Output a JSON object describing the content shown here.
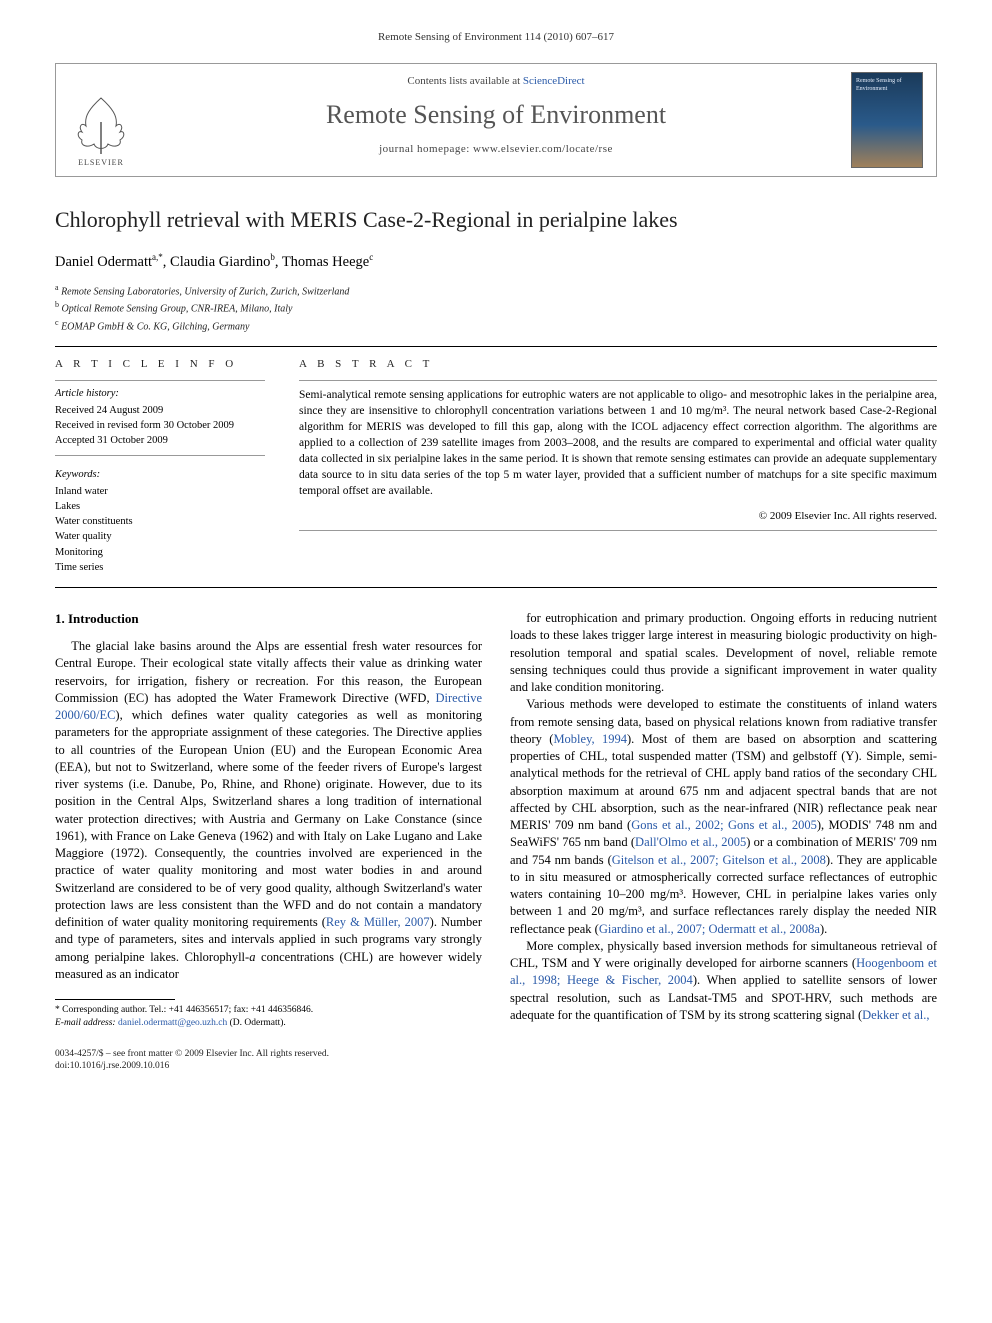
{
  "running_head": "Remote Sensing of Environment 114 (2010) 607–617",
  "masthead": {
    "contents_prefix": "Contents lists available at ",
    "contents_link": "ScienceDirect",
    "journal_name": "Remote Sensing of Environment",
    "homepage_prefix": "journal homepage: ",
    "homepage": "www.elsevier.com/locate/rse",
    "publisher_name": "ELSEVIER",
    "cover_label": "Remote Sensing of Environment"
  },
  "title": "Chlorophyll retrieval with MERIS Case-2-Regional in perialpine lakes",
  "authors_html": "Daniel Odermatt <sup>a,</sup>*, Claudia Giardino <sup>b</sup>, Thomas Heege <sup>c</sup>",
  "authors": [
    {
      "name": "Daniel Odermatt",
      "marks": "a,*"
    },
    {
      "name": "Claudia Giardino",
      "marks": "b"
    },
    {
      "name": "Thomas Heege",
      "marks": "c"
    }
  ],
  "affiliations": [
    {
      "mark": "a",
      "text": "Remote Sensing Laboratories, University of Zurich, Zurich, Switzerland"
    },
    {
      "mark": "b",
      "text": "Optical Remote Sensing Group, CNR-IREA, Milano, Italy"
    },
    {
      "mark": "c",
      "text": "EOMAP GmbH & Co. KG, Gilching, Germany"
    }
  ],
  "article_info_label": "A R T I C L E   I N F O",
  "abstract_label": "A B S T R A C T",
  "history": {
    "label": "Article history:",
    "items": [
      "Received 24 August 2009",
      "Received in revised form 30 October 2009",
      "Accepted 31 October 2009"
    ]
  },
  "keywords": {
    "label": "Keywords:",
    "items": [
      "Inland water",
      "Lakes",
      "Water constituents",
      "Water quality",
      "Monitoring",
      "Time series"
    ]
  },
  "abstract": "Semi-analytical remote sensing applications for eutrophic waters are not applicable to oligo- and mesotrophic lakes in the perialpine area, since they are insensitive to chlorophyll concentration variations between 1 and 10 mg/m³. The neural network based Case-2-Regional algorithm for MERIS was developed to fill this gap, along with the ICOL adjacency effect correction algorithm. The algorithms are applied to a collection of 239 satellite images from 2003–2008, and the results are compared to experimental and official water quality data collected in six perialpine lakes in the same period. It is shown that remote sensing estimates can provide an adequate supplementary data source to in situ data series of the top 5 m water layer, provided that a sufficient number of matchups for a site specific maximum temporal offset are available.",
  "copyright": "© 2009 Elsevier Inc. All rights reserved.",
  "section_heading": "1. Introduction",
  "body": {
    "p1": "The glacial lake basins around the Alps are essential fresh water resources for Central Europe. Their ecological state vitally affects their value as drinking water reservoirs, for irrigation, fishery or recreation. For this reason, the European Commission (EC) has adopted the Water Framework Directive (WFD, Directive 2000/60/EC), which defines water quality categories as well as monitoring parameters for the appropriate assignment of these categories. The Directive applies to all countries of the European Union (EU) and the European Economic Area (EEA), but not to Switzerland, where some of the feeder rivers of Europe's largest river systems (i.e. Danube, Po, Rhine, and Rhone) originate. However, due to its position in the Central Alps, Switzerland shares a long tradition of international water protection directives; with Austria and Germany on Lake Constance (since 1961), with France on Lake Geneva (1962) and with Italy on Lake Lugano and Lake Maggiore (1972). Consequently, the countries involved are experienced in the practice of water quality monitoring and most water bodies in and around Switzerland are considered to be of very good quality, although Switzerland's water protection laws are less consistent than the WFD and do not contain a mandatory definition of water quality monitoring requirements (Rey & Müller, 2007). Number and type of parameters, sites and intervals applied in such programs vary strongly among perialpine lakes. Chlorophyll-a concentrations (CHL) are however widely measured as an indicator",
    "p2": "for eutrophication and primary production. Ongoing efforts in reducing nutrient loads to these lakes trigger large interest in measuring biologic productivity on high-resolution temporal and spatial scales. Development of novel, reliable remote sensing techniques could thus provide a significant improvement in water quality and lake condition monitoring.",
    "p3": "Various methods were developed to estimate the constituents of inland waters from remote sensing data, based on physical relations known from radiative transfer theory (Mobley, 1994). Most of them are based on absorption and scattering properties of CHL, total suspended matter (TSM) and gelbstoff (Y). Simple, semi-analytical methods for the retrieval of CHL apply band ratios of the secondary CHL absorption maximum at around 675 nm and adjacent spectral bands that are not affected by CHL absorption, such as the near-infrared (NIR) reflectance peak near MERIS' 709 nm band (Gons et al., 2002; Gons et al., 2005), MODIS' 748 nm and SeaWiFS' 765 nm band (Dall'Olmo et al., 2005) or a combination of MERIS' 709 nm and 754 nm bands (Gitelson et al., 2007; Gitelson et al., 2008). They are applicable to in situ measured or atmospherically corrected surface reflectances of eutrophic waters containing 10–200 mg/m³. However, CHL in perialpine lakes varies only between 1 and 20 mg/m³, and surface reflectances rarely display the needed NIR reflectance peak (Giardino et al., 2007; Odermatt et al., 2008a).",
    "p4": "More complex, physically based inversion methods for simultaneous retrieval of CHL, TSM and Y were originally developed for airborne scanners (Hoogenboom et al., 1998; Heege & Fischer, 2004). When applied to satellite sensors of lower spectral resolution, such as Landsat-TM5 and SPOT-HRV, such methods are adequate for the quantification of TSM by its strong scattering signal (Dekker et al.,"
  },
  "cites": {
    "directive": "Directive 2000/60/EC",
    "rey": "Rey & Müller, 2007",
    "mobley": "Mobley, 1994",
    "gons": "Gons et al., 2002; Gons et al., 2005",
    "dallolmo": "Dall'Olmo et al., 2005",
    "gitelson": "Gitelson et al., 2007; Gitelson et al., 2008",
    "giardino": "Giardino et al., 2007; Odermatt et al., 2008a",
    "hoogenboom": "Hoogenboom et al., 1998; Heege & Fischer, 2004",
    "dekker": "Dekker et al.,"
  },
  "footnote": {
    "corr": "* Corresponding author. Tel.: +41 446356517; fax: +41 446356846.",
    "email_label": "E-mail address:",
    "email": "daniel.odermatt@geo.uzh.ch",
    "email_tail": "(D. Odermatt)."
  },
  "footer": {
    "left_line1": "0034-4257/$ – see front matter © 2009 Elsevier Inc. All rights reserved.",
    "left_line2": "doi:10.1016/j.rse.2009.10.016"
  },
  "colors": {
    "link": "#2a5aa8",
    "text": "#000000",
    "muted": "#444444",
    "rule": "#000000",
    "elsevier_orange": "#ef7d20"
  },
  "typography": {
    "body_pt": 12.5,
    "title_pt": 22,
    "journal_pt": 26,
    "small_pt": 10.5,
    "footnote_pt": 9.5
  }
}
